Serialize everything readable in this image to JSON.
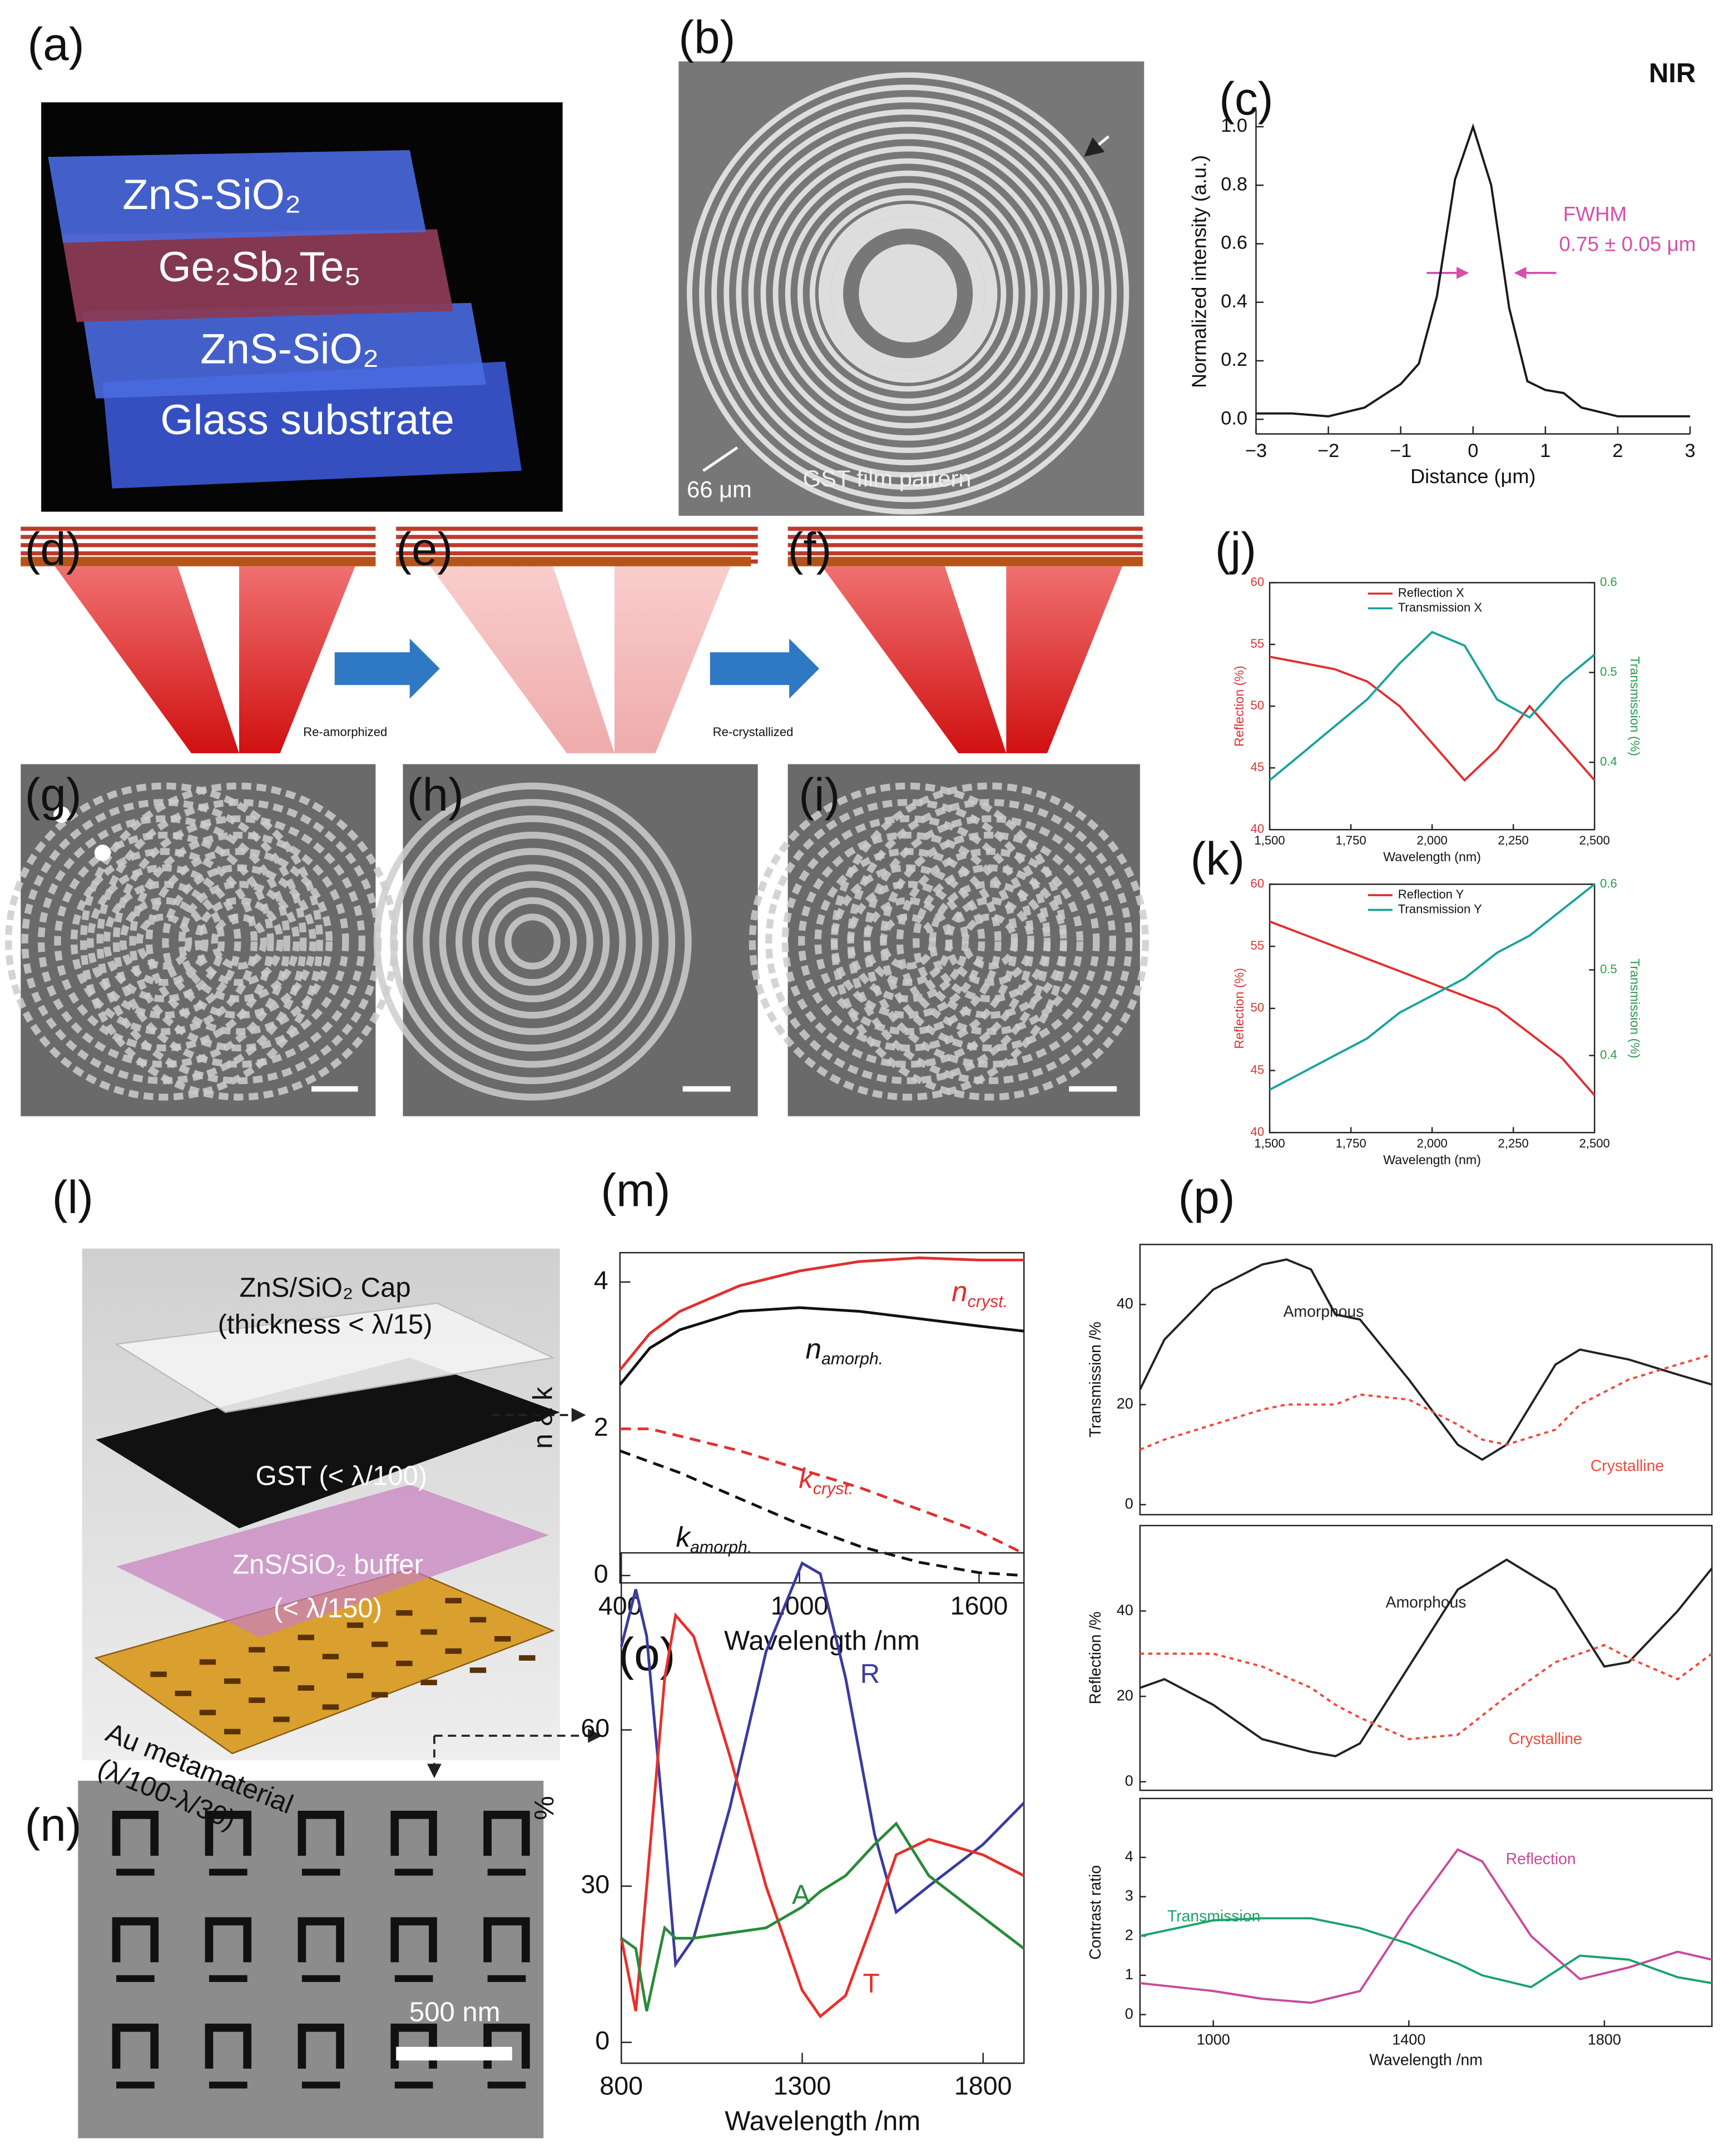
{
  "panel_labels": {
    "a": "(a)",
    "b": "(b)",
    "c": "(c)",
    "d": "(d)",
    "e": "(e)",
    "f": "(f)",
    "g": "(g)",
    "h": "(h)",
    "i": "(i)",
    "j": "(j)",
    "k": "(k)",
    "l": "(l)",
    "m": "(m)",
    "n": "(n)",
    "o": "(o)",
    "p": "(p)"
  },
  "figure_texts": {
    "a_layers": [
      "ZnS-SiO₂",
      "Ge₂Sb₂Te₅",
      "ZnS-SiO₂",
      "Glass substrate"
    ],
    "b_scale": "66 μm",
    "b_caption": "GST film pattern",
    "arrow_1": "Re-amorphized",
    "arrow_2": "Re-crystallized",
    "l_layers": [
      "ZnS/SiO₂ Cap",
      "(thickness < λ/15)",
      "GST  (< λ/100)",
      "ZnS/SiO₂ buffer",
      "(< λ/150)",
      "Au metamaterial",
      "(λ/100-λ/30)"
    ],
    "n_scale": "500 nm"
  },
  "chart_data": [
    {
      "type": "line",
      "title": "NIR",
      "xlabel": "Distance (μm)",
      "ylabel": "Normalized intensity (a.u.)",
      "annotations": [
        "FWHM",
        "0.75 ± 0.05 μm"
      ],
      "x": [
        -3,
        -2.5,
        -2,
        -1.5,
        -1,
        -0.75,
        -0.5,
        -0.25,
        0,
        0.25,
        0.5,
        0.75,
        1,
        1.25,
        1.5,
        2,
        2.5,
        3
      ],
      "series": [
        {
          "color": "#1a1a1a",
          "values": [
            0.02,
            0.02,
            0.01,
            0.04,
            0.12,
            0.19,
            0.42,
            0.82,
            1.0,
            0.8,
            0.38,
            0.13,
            0.1,
            0.09,
            0.04,
            0.01,
            0.01,
            0.01
          ]
        }
      ],
      "xlim": [
        -3,
        3
      ],
      "ylim": [
        -0.05,
        1.06
      ],
      "xticks": [
        {
          "value": -3,
          "label": "−3"
        },
        {
          "value": -2,
          "label": "−2"
        },
        {
          "value": -1,
          "label": "−1"
        },
        0,
        1,
        2,
        3
      ],
      "yticks": [
        {
          "value": 0,
          "label": "0.0"
        },
        0.2,
        0.4,
        0.6,
        0.8,
        {
          "value": 1,
          "label": "1.0"
        }
      ]
    },
    {
      "type": "line",
      "xlabel": "Wavelength (nm)",
      "ylabel": "Reflection (%)",
      "y2label": "Transmission (%)",
      "legend": "upper center",
      "x": [
        1500,
        1600,
        1700,
        1800,
        1900,
        2000,
        2100,
        2200,
        2300,
        2400,
        2500
      ],
      "series": [
        {
          "name": "Reflection X",
          "color": "#e0302f",
          "values": [
            54,
            53.5,
            53,
            52,
            50,
            47,
            44,
            46.5,
            50,
            47,
            44
          ]
        },
        {
          "name": "Transmission X",
          "color": "#1aa39a",
          "axis": "y2",
          "values": [
            0.38,
            0.41,
            0.44,
            0.47,
            0.51,
            0.545,
            0.53,
            0.47,
            0.45,
            0.49,
            0.52
          ]
        }
      ],
      "xlim": [
        1500,
        2500
      ],
      "ylim": [
        40,
        60
      ],
      "y2lim": [
        0.325,
        0.6
      ],
      "xticks": [
        {
          "value": 1500,
          "label": "1,500"
        },
        {
          "value": 1750,
          "label": "1,750"
        },
        {
          "value": 2000,
          "label": "2,000"
        },
        {
          "value": 2250,
          "label": "2,250"
        },
        {
          "value": 2500,
          "label": "2,500"
        }
      ],
      "yticks": [
        40,
        45,
        50,
        55,
        60
      ],
      "y2ticks": [
        0.4,
        0.5,
        0.6
      ]
    },
    {
      "type": "line",
      "xlabel": "Wavelength (nm)",
      "ylabel": "Reflection (%)",
      "y2label": "Transmission (%)",
      "legend": "upper center",
      "x": [
        1500,
        1600,
        1700,
        1800,
        1900,
        2000,
        2100,
        2200,
        2300,
        2400,
        2500
      ],
      "series": [
        {
          "name": "Reflection Y",
          "color": "#e0302f",
          "values": [
            57,
            56,
            55,
            54,
            53,
            52,
            51,
            50,
            48,
            46,
            43
          ]
        },
        {
          "name": "Transmission Y",
          "color": "#1aa39a",
          "axis": "y2",
          "values": [
            0.36,
            0.38,
            0.4,
            0.42,
            0.45,
            0.47,
            0.49,
            0.52,
            0.54,
            0.57,
            0.6
          ]
        }
      ],
      "xlim": [
        1500,
        2500
      ],
      "ylim": [
        40,
        60
      ],
      "y2lim": [
        0.31,
        0.6
      ],
      "xticks": [
        {
          "value": 1500,
          "label": "1,500"
        },
        {
          "value": 1750,
          "label": "1,750"
        },
        {
          "value": 2000,
          "label": "2,000"
        },
        {
          "value": 2250,
          "label": "2,250"
        },
        {
          "value": 2500,
          "label": "2,500"
        }
      ],
      "yticks": [
        40,
        45,
        50,
        55,
        60
      ],
      "y2ticks": [
        0.4,
        0.5,
        0.6
      ]
    },
    {
      "type": "line",
      "xlabel": "Wavelength /nm",
      "ylabel": "n & k",
      "x": [
        400,
        500,
        600,
        800,
        1000,
        1200,
        1400,
        1600,
        1750
      ],
      "series": [
        {
          "name": "n",
          "subscript": "cryst.",
          "color": "#e0302f",
          "values": [
            2.8,
            3.3,
            3.6,
            3.95,
            4.15,
            4.28,
            4.33,
            4.3,
            4.3
          ]
        },
        {
          "name": "n",
          "subscript": "amorph.",
          "color": "#111111",
          "values": [
            2.6,
            3.1,
            3.35,
            3.6,
            3.65,
            3.6,
            3.5,
            3.4,
            3.33
          ]
        },
        {
          "name": "k",
          "subscript": "cryst.",
          "color": "#e0302f",
          "dash": "dashed",
          "values": [
            2.0,
            2.0,
            1.9,
            1.7,
            1.45,
            1.2,
            0.9,
            0.6,
            0.3
          ]
        },
        {
          "name": "k",
          "subscript": "amorph.",
          "color": "#111111",
          "dash": "dashed",
          "values": [
            1.7,
            1.55,
            1.4,
            1.05,
            0.7,
            0.4,
            0.18,
            0.04,
            0.0
          ]
        }
      ],
      "xlim": [
        400,
        1750
      ],
      "ylim": [
        -0.1,
        4.4
      ],
      "xticks": [
        400,
        1000,
        1600
      ],
      "yticks": [
        0,
        2,
        4
      ]
    },
    {
      "type": "line",
      "xlabel": "Wavelength /nm",
      "ylabel": "%",
      "x": [
        800,
        840,
        870,
        920,
        950,
        1000,
        1100,
        1200,
        1300,
        1350,
        1420,
        1500,
        1560,
        1650,
        1800,
        1913
      ],
      "series": [
        {
          "name": "R",
          "color": "#3a3aa0",
          "values": [
            76,
            87,
            78,
            40,
            15,
            20,
            45,
            75,
            92,
            90,
            70,
            40,
            25,
            30,
            38,
            46
          ]
        },
        {
          "name": "T",
          "color": "#e8302a",
          "values": [
            20,
            6,
            30,
            70,
            82,
            78,
            55,
            30,
            10,
            5,
            9,
            24,
            36,
            39,
            36,
            32
          ]
        },
        {
          "name": "A",
          "color": "#2a8a3a",
          "values": [
            20,
            18,
            6,
            22,
            20,
            20,
            21,
            22,
            26,
            29,
            32,
            38,
            42,
            32,
            24,
            18
          ]
        }
      ],
      "xlim": [
        800,
        1913
      ],
      "ylim": [
        -4,
        94
      ],
      "xticks": [
        800,
        1300,
        1800
      ],
      "yticks": [
        0,
        30,
        60
      ]
    },
    {
      "type": "line",
      "ylabel": "Transmission /%",
      "x": [
        850,
        900,
        1000,
        1100,
        1150,
        1200,
        1250,
        1300,
        1400,
        1500,
        1550,
        1600,
        1700,
        1750,
        1850,
        1950,
        2020
      ],
      "series": [
        {
          "name": "Amorphous",
          "color": "#222222",
          "values": [
            23,
            33,
            43,
            48,
            49,
            47,
            38,
            37,
            25,
            12,
            9,
            12,
            28,
            31,
            29,
            26,
            24
          ]
        },
        {
          "name": "Crystalline",
          "color": "#f04a3a",
          "dash": "dotted",
          "values": [
            11,
            13,
            16,
            19,
            20,
            20,
            20,
            22,
            21,
            16,
            13,
            12,
            15,
            20,
            25,
            28,
            30
          ]
        }
      ],
      "xlim": [
        850,
        2020
      ],
      "ylim": [
        -2,
        52
      ],
      "yticks": [
        0,
        20,
        40
      ]
    },
    {
      "type": "line",
      "ylabel": "Reflection /%",
      "x": [
        850,
        900,
        1000,
        1100,
        1200,
        1250,
        1300,
        1400,
        1500,
        1600,
        1700,
        1800,
        1850,
        1950,
        2020
      ],
      "series": [
        {
          "name": "Amorphous",
          "color": "#222222",
          "values": [
            22,
            24,
            18,
            10,
            7,
            6,
            9,
            27,
            45,
            52,
            45,
            27,
            28,
            40,
            50
          ]
        },
        {
          "name": "Crystalline",
          "color": "#f04a3a",
          "dash": "dotted",
          "values": [
            30,
            30,
            30,
            27,
            22,
            18,
            15,
            10,
            11,
            20,
            28,
            32,
            29,
            24,
            30
          ]
        }
      ],
      "xlim": [
        850,
        2020
      ],
      "ylim": [
        -2,
        60
      ],
      "yticks": [
        0,
        20,
        40
      ]
    },
    {
      "type": "line",
      "xlabel": "Wavelength /nm",
      "ylabel": "Contrast ratio",
      "x": [
        850,
        1000,
        1100,
        1200,
        1300,
        1400,
        1500,
        1550,
        1650,
        1750,
        1850,
        1950,
        2020
      ],
      "series": [
        {
          "name": "Reflection",
          "color": "#c84a9a",
          "values": [
            0.8,
            0.6,
            0.4,
            0.3,
            0.6,
            2.5,
            4.2,
            3.9,
            2.0,
            0.9,
            1.2,
            1.6,
            1.4
          ]
        },
        {
          "name": "Transmission",
          "color": "#1aa36a",
          "values": [
            2.0,
            2.4,
            2.45,
            2.45,
            2.2,
            1.8,
            1.3,
            1.0,
            0.7,
            1.5,
            1.4,
            0.95,
            0.8
          ]
        }
      ],
      "xlim": [
        850,
        2020
      ],
      "ylim": [
        -0.3,
        5.5
      ],
      "xticks": [
        1000,
        1400,
        1800
      ],
      "yticks": [
        0,
        1,
        2,
        3,
        4
      ]
    }
  ]
}
